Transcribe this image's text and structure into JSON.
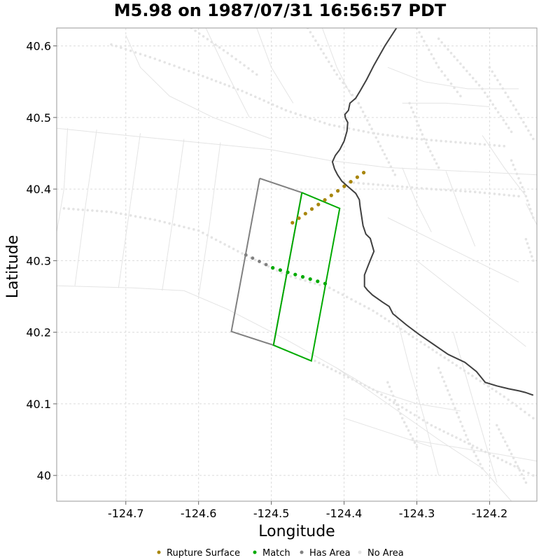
{
  "chart_data": {
    "type": "scatter",
    "title": "M5.98 on 1987/07/31 16:56:57 PDT",
    "xlabel": "Longitude",
    "ylabel": "Latitude",
    "xlim": [
      -124.795,
      -124.135
    ],
    "ylim": [
      39.964,
      40.625
    ],
    "xticks": [
      -124.7,
      -124.6,
      -124.5,
      -124.4,
      -124.3,
      -124.2
    ],
    "yticks": [
      40.0,
      40.1,
      40.2,
      40.3,
      40.4,
      40.5,
      40.6
    ],
    "xtick_labels": [
      "-124.7",
      "-124.6",
      "-124.5",
      "-124.4",
      "-124.3",
      "-124.2"
    ],
    "ytick_labels": [
      "40",
      "40.1",
      "40.2",
      "40.3",
      "40.4",
      "40.5",
      "40.6"
    ],
    "grid": true,
    "legend_position": "bottom",
    "colors": {
      "rupture": "#a8860c",
      "match": "#00aa00",
      "has_area": "#808080",
      "no_area": "#e4e4e4",
      "coastline": "#404040"
    },
    "legend": [
      {
        "label": "Rupture Surface",
        "color": "#a8860c"
      },
      {
        "label": "Match",
        "color": "#00aa00"
      },
      {
        "label": "Has Area",
        "color": "#808080"
      },
      {
        "label": "No Area",
        "color": "#e4e4e4"
      }
    ],
    "rupture_trace": [
      [
        -124.471,
        40.353
      ],
      [
        -124.373,
        40.423
      ]
    ],
    "match_polygon": [
      [
        -124.458,
        40.395
      ],
      [
        -124.406,
        40.373
      ],
      [
        -124.445,
        40.16
      ],
      [
        -124.497,
        40.182
      ],
      [
        -124.458,
        40.395
      ]
    ],
    "has_area_polygon": [
      [
        -124.516,
        40.415
      ],
      [
        -124.458,
        40.395
      ],
      [
        -124.497,
        40.182
      ],
      [
        -124.555,
        40.201
      ],
      [
        -124.516,
        40.415
      ]
    ],
    "has_area_trace": [
      [
        -124.535,
        40.308
      ],
      [
        -124.498,
        40.29
      ]
    ],
    "match_trace": [
      [
        -124.498,
        40.29
      ],
      [
        -124.426,
        40.268
      ]
    ],
    "coastline": [
      [
        -124.328,
        40.625
      ],
      [
        -124.344,
        40.6
      ],
      [
        -124.359,
        40.573
      ],
      [
        -124.369,
        40.553
      ],
      [
        -124.378,
        40.537
      ],
      [
        -124.384,
        40.527
      ],
      [
        -124.392,
        40.52
      ],
      [
        -124.394,
        40.51
      ],
      [
        -124.399,
        40.504
      ],
      [
        -124.398,
        40.499
      ],
      [
        -124.395,
        40.493
      ],
      [
        -124.396,
        40.481
      ],
      [
        -124.4,
        40.467
      ],
      [
        -124.406,
        40.455
      ],
      [
        -124.412,
        40.447
      ],
      [
        -124.416,
        40.438
      ],
      [
        -124.413,
        40.428
      ],
      [
        -124.409,
        40.42
      ],
      [
        -124.403,
        40.411
      ],
      [
        -124.393,
        40.402
      ],
      [
        -124.384,
        40.394
      ],
      [
        -124.379,
        40.385
      ],
      [
        -124.378,
        40.376
      ],
      [
        -124.374,
        40.349
      ],
      [
        -124.37,
        40.337
      ],
      [
        -124.364,
        40.331
      ],
      [
        -124.359,
        40.313
      ],
      [
        -124.363,
        40.303
      ],
      [
        -124.367,
        40.293
      ],
      [
        -124.372,
        40.28
      ],
      [
        -124.372,
        40.264
      ],
      [
        -124.368,
        40.259
      ],
      [
        -124.361,
        40.252
      ],
      [
        -124.347,
        40.242
      ],
      [
        -124.338,
        40.236
      ],
      [
        -124.333,
        40.226
      ],
      [
        -124.314,
        40.21
      ],
      [
        -124.297,
        40.197
      ],
      [
        -124.277,
        40.183
      ],
      [
        -124.257,
        40.169
      ],
      [
        -124.234,
        40.158
      ],
      [
        -124.218,
        40.145
      ],
      [
        -124.206,
        40.13
      ],
      [
        -124.19,
        40.125
      ],
      [
        -124.174,
        40.121
      ],
      [
        -124.159,
        40.118
      ],
      [
        -124.151,
        40.116
      ],
      [
        -124.14,
        40.112
      ]
    ],
    "background_sections": [
      [
        [
          -124.785,
          40.373
        ],
        [
          -124.72,
          40.368
        ],
        [
          -124.66,
          40.357
        ],
        [
          -124.6,
          40.342
        ],
        [
          -124.54,
          40.31
        ],
        [
          -124.48,
          40.28
        ],
        [
          -124.42,
          40.262
        ],
        [
          -124.36,
          40.23
        ],
        [
          -124.3,
          40.19
        ],
        [
          -124.24,
          40.15
        ],
        [
          -124.18,
          40.11
        ],
        [
          -124.14,
          40.08
        ]
      ],
      [
        [
          -124.72,
          40.602
        ],
        [
          -124.66,
          40.582
        ],
        [
          -124.6,
          40.56
        ],
        [
          -124.54,
          40.537
        ],
        [
          -124.48,
          40.51
        ],
        [
          -124.42,
          40.49
        ],
        [
          -124.36,
          40.478
        ],
        [
          -124.3,
          40.47
        ],
        [
          -124.24,
          40.465
        ],
        [
          -124.18,
          40.46
        ]
      ],
      [
        [
          -124.4,
          40.41
        ],
        [
          -124.34,
          40.405
        ],
        [
          -124.28,
          40.4
        ],
        [
          -124.22,
          40.396
        ],
        [
          -124.16,
          40.39
        ]
      ],
      [
        [
          -124.61,
          40.625
        ],
        [
          -124.56,
          40.59
        ],
        [
          -124.52,
          40.56
        ]
      ],
      [
        [
          -124.45,
          40.625
        ],
        [
          -124.41,
          40.56
        ],
        [
          -124.38,
          40.52
        ]
      ],
      [
        [
          -124.3,
          40.625
        ],
        [
          -124.27,
          40.57
        ],
        [
          -124.24,
          40.53
        ]
      ],
      [
        [
          -124.27,
          40.61
        ],
        [
          -124.21,
          40.54
        ],
        [
          -124.17,
          40.48
        ]
      ],
      [
        [
          -124.2,
          40.57
        ],
        [
          -124.16,
          40.505
        ],
        [
          -124.14,
          40.47
        ]
      ],
      [
        [
          -124.38,
          40.52
        ],
        [
          -124.35,
          40.46
        ],
        [
          -124.33,
          40.42
        ]
      ],
      [
        [
          -124.31,
          40.52
        ],
        [
          -124.29,
          40.47
        ],
        [
          -124.27,
          40.43
        ]
      ],
      [
        [
          -124.17,
          40.44
        ],
        [
          -124.15,
          40.39
        ],
        [
          -124.14,
          40.36
        ]
      ],
      [
        [
          -124.15,
          40.33
        ],
        [
          -124.14,
          40.3
        ]
      ],
      [
        [
          -124.44,
          40.16
        ],
        [
          -124.4,
          40.14
        ],
        [
          -124.36,
          40.12
        ],
        [
          -124.32,
          40.095
        ],
        [
          -124.28,
          40.07
        ],
        [
          -124.24,
          40.05
        ],
        [
          -124.2,
          40.03
        ],
        [
          -124.16,
          40.01
        ],
        [
          -124.14,
          40.0
        ]
      ],
      [
        [
          -124.27,
          40.15
        ],
        [
          -124.25,
          40.1
        ],
        [
          -124.23,
          40.05
        ],
        [
          -124.21,
          40.01
        ]
      ],
      [
        [
          -124.19,
          40.07
        ],
        [
          -124.17,
          40.03
        ],
        [
          -124.15,
          39.99
        ]
      ],
      [
        [
          -124.34,
          40.13
        ],
        [
          -124.32,
          40.08
        ],
        [
          -124.3,
          40.04
        ]
      ]
    ],
    "background_outlines": [
      [
        [
          -124.795,
          40.485
        ],
        [
          -124.7,
          40.475
        ],
        [
          -124.6,
          40.465
        ],
        [
          -124.5,
          40.455
        ],
        [
          -124.42,
          40.44
        ],
        [
          -124.34,
          40.43
        ],
        [
          -124.24,
          40.425
        ],
        [
          -124.135,
          40.42
        ]
      ],
      [
        [
          -124.795,
          40.265
        ],
        [
          -124.69,
          40.262
        ],
        [
          -124.62,
          40.258
        ],
        [
          -124.56,
          40.232
        ],
        [
          -124.48,
          40.19
        ],
        [
          -124.41,
          40.15
        ],
        [
          -124.34,
          40.1
        ],
        [
          -124.27,
          40.05
        ],
        [
          -124.21,
          40.01
        ],
        [
          -124.17,
          39.964
        ]
      ],
      [
        [
          -124.78,
          40.485
        ],
        [
          -124.785,
          40.4
        ],
        [
          -124.795,
          40.34
        ]
      ],
      [
        [
          -124.74,
          40.483
        ],
        [
          -124.755,
          40.38
        ],
        [
          -124.77,
          40.265
        ]
      ],
      [
        [
          -124.68,
          40.478
        ],
        [
          -124.695,
          40.37
        ],
        [
          -124.71,
          40.262
        ]
      ],
      [
        [
          -124.62,
          40.47
        ],
        [
          -124.635,
          40.36
        ],
        [
          -124.65,
          40.258
        ]
      ],
      [
        [
          -124.57,
          40.465
        ],
        [
          -124.585,
          40.35
        ],
        [
          -124.6,
          40.25
        ]
      ],
      [
        [
          -124.7,
          40.615
        ],
        [
          -124.68,
          40.57
        ],
        [
          -124.64,
          40.53
        ],
        [
          -124.58,
          40.5
        ],
        [
          -124.5,
          40.47
        ]
      ],
      [
        [
          -124.59,
          40.625
        ],
        [
          -124.56,
          40.56
        ],
        [
          -124.53,
          40.5
        ]
      ],
      [
        [
          -124.52,
          40.625
        ],
        [
          -124.5,
          40.57
        ],
        [
          -124.47,
          40.52
        ]
      ],
      [
        [
          -124.43,
          40.625
        ],
        [
          -124.41,
          40.57
        ],
        [
          -124.39,
          40.53
        ]
      ],
      [
        [
          -124.34,
          40.57
        ],
        [
          -124.29,
          40.55
        ],
        [
          -124.23,
          40.54
        ],
        [
          -124.16,
          40.54
        ]
      ],
      [
        [
          -124.32,
          40.52
        ],
        [
          -124.26,
          40.52
        ],
        [
          -124.2,
          40.515
        ]
      ],
      [
        [
          -124.32,
          40.43
        ],
        [
          -124.3,
          40.38
        ],
        [
          -124.28,
          40.34
        ]
      ],
      [
        [
          -124.26,
          40.425
        ],
        [
          -124.24,
          40.37
        ],
        [
          -124.22,
          40.32
        ]
      ],
      [
        [
          -124.34,
          40.36
        ],
        [
          -124.28,
          40.33
        ],
        [
          -124.22,
          40.3
        ],
        [
          -124.16,
          40.27
        ]
      ],
      [
        [
          -124.3,
          40.3
        ],
        [
          -124.25,
          40.26
        ],
        [
          -124.2,
          40.22
        ],
        [
          -124.15,
          40.18
        ]
      ],
      [
        [
          -124.33,
          40.23
        ],
        [
          -124.31,
          40.15
        ],
        [
          -124.29,
          40.08
        ],
        [
          -124.27,
          40.0
        ]
      ],
      [
        [
          -124.25,
          40.2
        ],
        [
          -124.23,
          40.13
        ],
        [
          -124.21,
          40.06
        ],
        [
          -124.19,
          39.99
        ]
      ],
      [
        [
          -124.31,
          40.05
        ],
        [
          -124.25,
          40.04
        ],
        [
          -124.19,
          40.03
        ],
        [
          -124.135,
          40.02
        ]
      ],
      [
        [
          -124.41,
          40.15
        ],
        [
          -124.36,
          40.12
        ],
        [
          -124.3,
          40.1
        ],
        [
          -124.24,
          40.09
        ]
      ],
      [
        [
          -124.4,
          40.08
        ],
        [
          -124.34,
          40.06
        ],
        [
          -124.28,
          40.04
        ]
      ],
      [
        [
          -124.15,
          40.38
        ],
        [
          -124.135,
          40.35
        ]
      ],
      [
        [
          -124.21,
          40.475
        ],
        [
          -124.18,
          40.43
        ],
        [
          -124.15,
          40.39
        ]
      ]
    ]
  }
}
